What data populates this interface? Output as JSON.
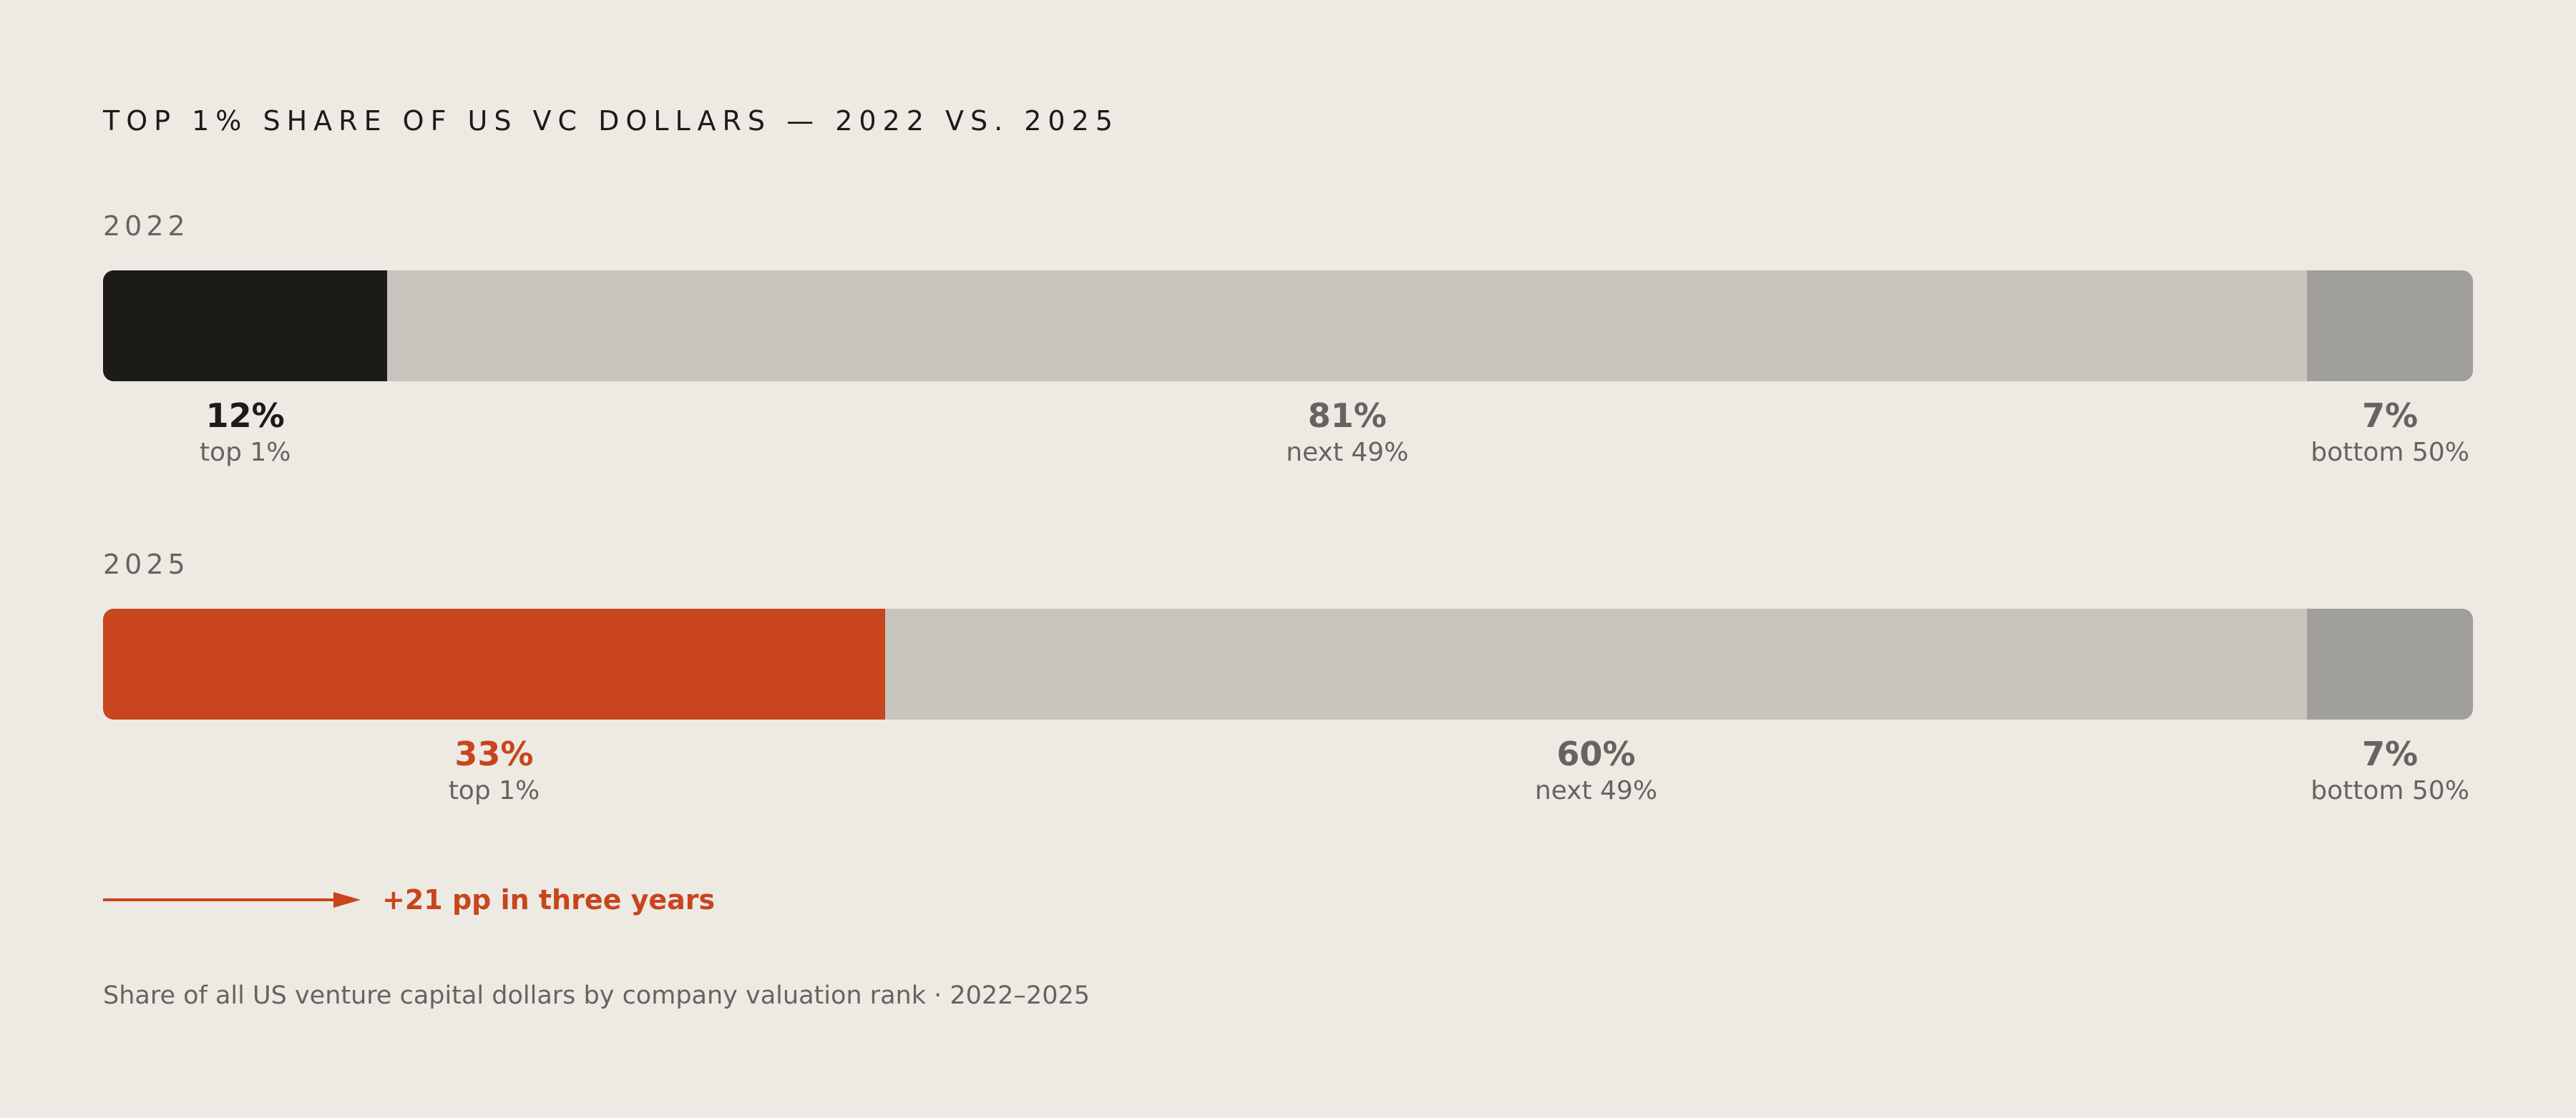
{
  "title": "TOP 1% SHARE OF US VC DOLLARS — 2022 VS. 2025",
  "footnote": "Share of all US venture capital dollars by company valuation rank · 2022–2025",
  "callout": {
    "text": "+21 pp in three years",
    "icon": "arrow-right-icon"
  },
  "colors": {
    "background": "#edeae4",
    "top_2022": "#1c1b18",
    "top_2025": "#c8451d",
    "next": "#c8c5be",
    "bottom": "#a09f9a",
    "muted_text": "#66645f"
  },
  "chart_data": {
    "type": "bar",
    "orientation": "horizontal-stacked-100",
    "title": "TOP 1% SHARE OF US VC DOLLARS — 2022 VS. 2025",
    "unit": "%",
    "xlim": [
      0,
      100
    ],
    "categories": [
      "2022",
      "2025"
    ],
    "series": [
      {
        "name": "top 1%",
        "values": [
          12,
          33
        ]
      },
      {
        "name": "next 49%",
        "values": [
          81,
          60
        ]
      },
      {
        "name": "bottom 50%",
        "values": [
          7,
          7
        ]
      }
    ]
  },
  "rows": [
    {
      "year": "2022",
      "segments": [
        {
          "label_value": "12%",
          "label_name": "top 1%",
          "color": "#1c1b18",
          "value_color": "#1c1b18"
        },
        {
          "label_value": "81%",
          "label_name": "next 49%",
          "color": "#c8c5be",
          "value_color": "#66645f"
        },
        {
          "label_value": "7%",
          "label_name": "bottom 50%",
          "color": "#a09f9a",
          "value_color": "#66645f"
        }
      ]
    },
    {
      "year": "2025",
      "segments": [
        {
          "label_value": "33%",
          "label_name": "top 1%",
          "color": "#c8451d",
          "value_color": "#c8451d"
        },
        {
          "label_value": "60%",
          "label_name": "next 49%",
          "color": "#c8c5be",
          "value_color": "#66645f"
        },
        {
          "label_value": "7%",
          "label_name": "bottom 50%",
          "color": "#a09f9a",
          "value_color": "#66645f"
        }
      ]
    }
  ]
}
